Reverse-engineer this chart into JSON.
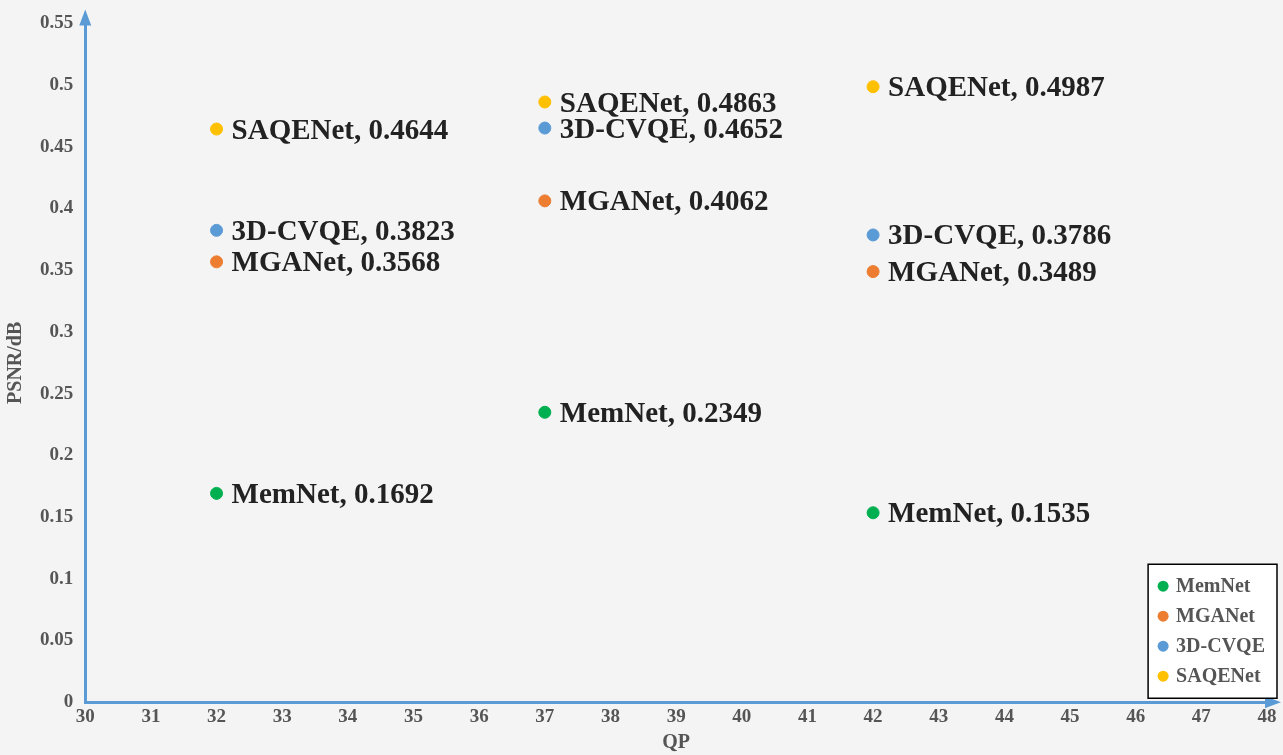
{
  "chart_data": {
    "type": "scatter",
    "xlabel": "QP",
    "ylabel": "PSNR/dB",
    "xlim": [
      30,
      48
    ],
    "xticks": [
      30,
      31,
      32,
      33,
      34,
      35,
      36,
      37,
      38,
      39,
      40,
      41,
      42,
      43,
      44,
      45,
      46,
      47,
      48
    ],
    "ylim": [
      0,
      0.55
    ],
    "yticks": [
      0,
      0.05,
      0.1,
      0.15,
      0.2,
      0.25,
      0.3,
      0.35,
      0.4,
      0.45,
      0.5,
      0.55
    ],
    "grid": false,
    "legend": "bottom right",
    "marker": "circle",
    "x": [
      32,
      37,
      42
    ],
    "series": [
      {
        "name": "MemNet",
        "color": "#00b050",
        "values": [
          0.1692,
          0.2349,
          0.1535
        ],
        "value_labels": [
          "MemNet, 0.1692",
          "MemNet, 0.2349",
          "MemNet, 0.1535"
        ]
      },
      {
        "name": "MGANet",
        "color": "#ed7d31",
        "values": [
          0.3568,
          0.4062,
          0.3489
        ],
        "value_labels": [
          "MGANet, 0.3568",
          "MGANet, 0.4062",
          "MGANet, 0.3489"
        ]
      },
      {
        "name": "3D-CVQE",
        "color": "#5b9bd5",
        "values": [
          0.3823,
          0.4652,
          0.3786
        ],
        "value_labels": [
          "3D-CVQE, 0.3823",
          "3D-CVQE, 0.4652",
          "3D-CVQE, 0.3786"
        ]
      },
      {
        "name": "SAQENet",
        "color": "#ffc000",
        "values": [
          0.4644,
          0.4863,
          0.4987
        ],
        "value_labels": [
          "SAQENet, 0.4644",
          "SAQENet, 0.4863",
          "SAQENet, 0.4987"
        ]
      }
    ]
  }
}
